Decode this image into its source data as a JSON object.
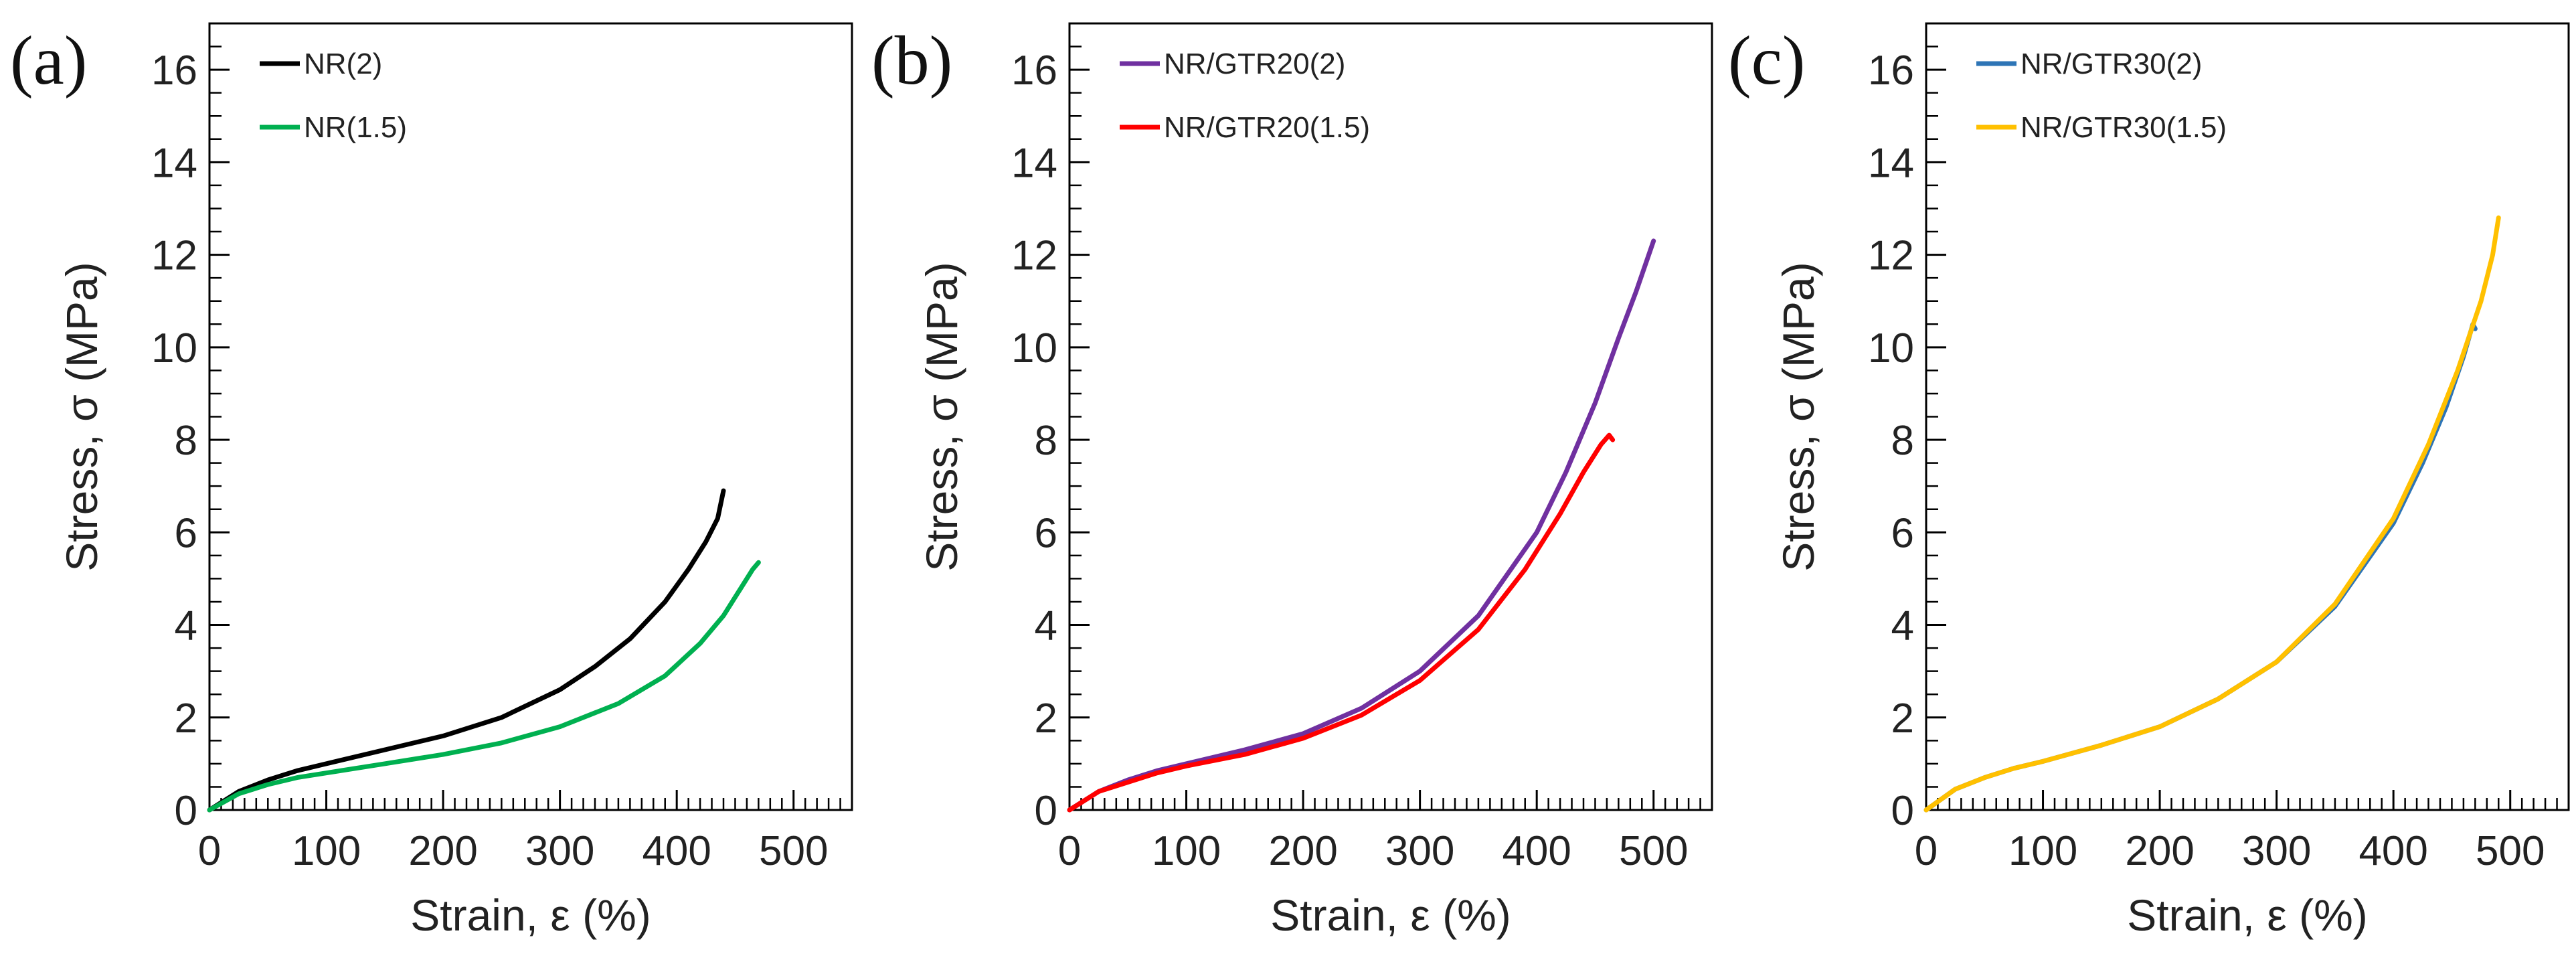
{
  "chart_data": [
    {
      "type": "line",
      "panel_label": "(a)",
      "xlabel": "Strain, ε (%)",
      "ylabel": "Stress, σ (MPa)",
      "xlim": [
        0,
        550
      ],
      "ylim": [
        0,
        17
      ],
      "xticks": [
        "0",
        "100",
        "200",
        "300",
        "400",
        "500"
      ],
      "yticks": [
        "0",
        "2",
        "4",
        "6",
        "8",
        "10",
        "12",
        "14",
        "16"
      ],
      "legend_position": "top-left",
      "series": [
        {
          "name": "NR(2)",
          "color": "#000000",
          "x": [
            0,
            25,
            50,
            75,
            100,
            150,
            200,
            250,
            300,
            330,
            360,
            390,
            410,
            425,
            435,
            440
          ],
          "y": [
            0,
            0.4,
            0.65,
            0.85,
            1.0,
            1.3,
            1.6,
            2.0,
            2.6,
            3.1,
            3.7,
            4.5,
            5.2,
            5.8,
            6.3,
            6.9
          ]
        },
        {
          "name": "NR(1.5)",
          "color": "#00b050",
          "x": [
            0,
            25,
            50,
            75,
            100,
            150,
            200,
            250,
            300,
            350,
            390,
            420,
            440,
            455,
            465,
            470
          ],
          "y": [
            0,
            0.35,
            0.55,
            0.7,
            0.8,
            1.0,
            1.2,
            1.45,
            1.8,
            2.3,
            2.9,
            3.6,
            4.2,
            4.8,
            5.2,
            5.35
          ]
        }
      ]
    },
    {
      "type": "line",
      "panel_label": "(b)",
      "xlabel": "Strain, ε (%)",
      "ylabel": "Stress, σ (MPa)",
      "xlim": [
        0,
        550
      ],
      "ylim": [
        0,
        17
      ],
      "xticks": [
        "0",
        "100",
        "200",
        "300",
        "400",
        "500"
      ],
      "yticks": [
        "0",
        "2",
        "4",
        "6",
        "8",
        "10",
        "12",
        "14",
        "16"
      ],
      "legend_position": "top-left",
      "series": [
        {
          "name": "NR/GTR20(2)",
          "color": "#7030a0",
          "x": [
            0,
            25,
            50,
            75,
            100,
            150,
            200,
            250,
            300,
            350,
            400,
            425,
            450,
            470,
            485,
            500
          ],
          "y": [
            0,
            0.4,
            0.65,
            0.85,
            1.0,
            1.3,
            1.65,
            2.2,
            3.0,
            4.2,
            6.0,
            7.3,
            8.8,
            10.2,
            11.2,
            12.3
          ]
        },
        {
          "name": "NR/GTR20(1.5)",
          "color": "#ff0000",
          "x": [
            0,
            25,
            50,
            75,
            100,
            150,
            200,
            250,
            300,
            350,
            390,
            420,
            440,
            455,
            462,
            465
          ],
          "y": [
            0,
            0.4,
            0.6,
            0.8,
            0.95,
            1.2,
            1.55,
            2.05,
            2.8,
            3.9,
            5.2,
            6.4,
            7.3,
            7.9,
            8.1,
            8.0
          ]
        }
      ]
    },
    {
      "type": "line",
      "panel_label": "(c)",
      "xlabel": "Strain, ε (%)",
      "ylabel": "Stress, σ (MPa)",
      "xlim": [
        0,
        550
      ],
      "ylim": [
        0,
        17
      ],
      "xticks": [
        "0",
        "100",
        "200",
        "300",
        "400",
        "500"
      ],
      "yticks": [
        "0",
        "2",
        "4",
        "6",
        "8",
        "10",
        "12",
        "14",
        "16"
      ],
      "legend_position": "top-left",
      "series": [
        {
          "name": "NR/GTR30(2)",
          "color": "#2e75b6",
          "x": [
            0,
            25,
            50,
            75,
            100,
            150,
            200,
            250,
            300,
            350,
            400,
            425,
            445,
            460,
            468,
            470
          ],
          "y": [
            0,
            0.45,
            0.7,
            0.9,
            1.05,
            1.4,
            1.8,
            2.4,
            3.2,
            4.4,
            6.2,
            7.5,
            8.7,
            9.8,
            10.5,
            10.4
          ]
        },
        {
          "name": "NR/GTR30(1.5)",
          "color": "#ffc000",
          "x": [
            0,
            25,
            50,
            75,
            100,
            150,
            200,
            250,
            300,
            350,
            400,
            430,
            455,
            475,
            485,
            490
          ],
          "y": [
            0,
            0.45,
            0.7,
            0.9,
            1.05,
            1.4,
            1.8,
            2.4,
            3.2,
            4.45,
            6.3,
            7.9,
            9.5,
            11.0,
            12.0,
            12.8
          ]
        }
      ]
    }
  ]
}
